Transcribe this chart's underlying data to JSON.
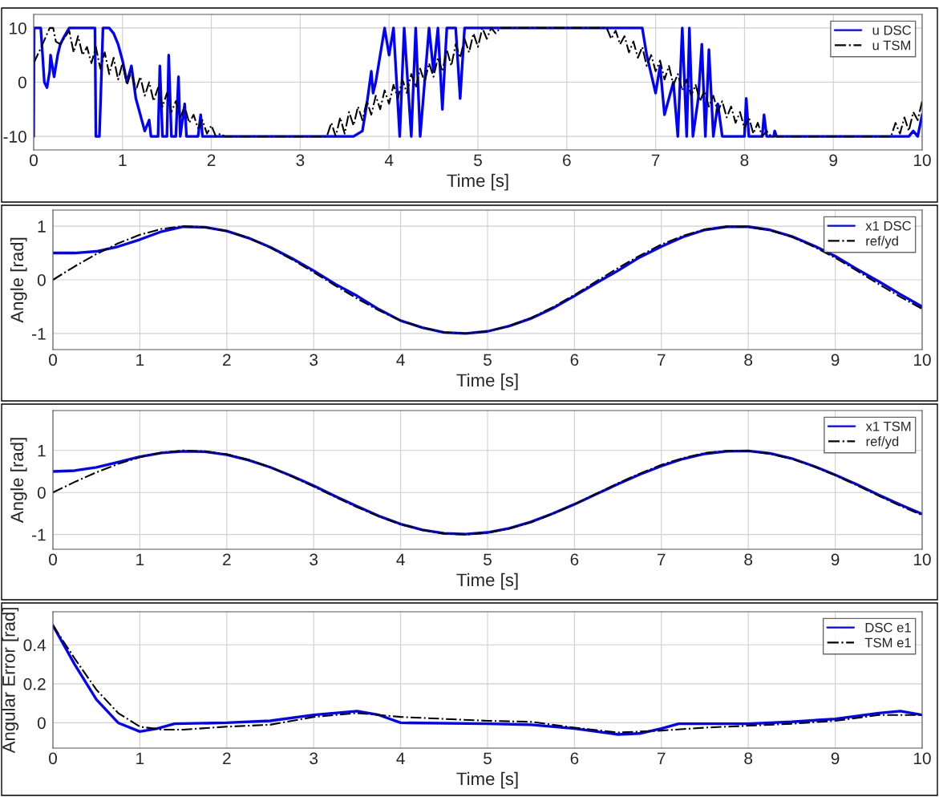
{
  "chart_data": [
    {
      "type": "line",
      "xlabel": "Time [s]",
      "xlim": [
        0,
        10
      ],
      "xticks": [
        0,
        1,
        2,
        3,
        4,
        5,
        6,
        7,
        8,
        9,
        10
      ],
      "ylim": [
        -12.5,
        12.5
      ],
      "yticks": [
        -10,
        0,
        10
      ],
      "grid": true,
      "legend": "top right",
      "series": [
        {
          "name": "u DSC",
          "color": "#0000ff",
          "line_style": "solid",
          "x": [
            0,
            0.005,
            0.08,
            0.12,
            0.15,
            0.18,
            0.19,
            0.22,
            0.23,
            0.27,
            0.3,
            0.33,
            0.4,
            0.69,
            0.7,
            0.74,
            0.78,
            0.85,
            0.9,
            0.95,
            1.0,
            1.05,
            1.1,
            1.15,
            1.2,
            1.25,
            1.3,
            1.32,
            1.4,
            1.42,
            1.45,
            1.5,
            1.52,
            1.55,
            1.6,
            1.63,
            1.65,
            1.7,
            1.72,
            1.85,
            1.88,
            1.9,
            3.6,
            3.7,
            3.75,
            3.8,
            3.82,
            3.85,
            3.95,
            4.0,
            4.05,
            4.12,
            4.17,
            4.25,
            4.3,
            4.35,
            4.45,
            4.5,
            4.55,
            4.6,
            4.65,
            4.75,
            4.8,
            4.85,
            6.85,
            6.9,
            7.0,
            7.05,
            7.1,
            7.2,
            7.25,
            7.3,
            7.35,
            7.38,
            7.42,
            7.48,
            7.52,
            7.56,
            7.6,
            7.65,
            7.7,
            7.75,
            8.0,
            8.02,
            8.05,
            8.2,
            8.22,
            8.25,
            8.33,
            8.34,
            8.36,
            9.85,
            9.9,
            9.95,
            10
          ],
          "values": [
            -10,
            10,
            10,
            0,
            -1,
            2,
            5,
            2,
            1,
            5,
            7,
            8,
            10,
            10,
            -10,
            -10,
            10,
            10,
            9,
            7,
            4,
            0,
            3,
            -3,
            -6,
            -9,
            -7,
            -10,
            -10,
            3,
            -10,
            -10,
            5,
            -10,
            -10,
            1,
            -10,
            -4,
            -10,
            -10,
            -6,
            -10,
            -10,
            -9,
            -4,
            2,
            -2,
            0,
            10,
            5,
            10,
            -10,
            10,
            -10,
            10,
            -10,
            10,
            2,
            10,
            -5,
            10,
            10,
            -3,
            10,
            10,
            5,
            -2,
            3,
            -6,
            0,
            -10,
            10,
            -10,
            10,
            -10,
            -3,
            7,
            -10,
            6,
            -10,
            -4,
            -10,
            -10,
            -3,
            -10,
            -10,
            -6,
            -10,
            -10,
            -9,
            -10,
            -10,
            -9,
            -10,
            -6
          ]
        },
        {
          "name": "u TSM",
          "color": "#000000",
          "line_style": "dashed",
          "x": [
            0,
            0.1,
            0.18,
            0.22,
            0.25,
            0.3,
            0.4,
            0.45,
            0.5,
            0.55,
            0.6,
            0.65,
            0.7,
            0.75,
            0.8,
            0.85,
            0.9,
            0.95,
            1.0,
            1.05,
            1.1,
            1.15,
            1.2,
            1.25,
            1.3,
            1.35,
            1.4,
            1.45,
            1.5,
            1.55,
            1.6,
            1.65,
            1.7,
            1.75,
            1.8,
            1.85,
            1.9,
            1.95,
            2.0,
            2.05,
            2.1,
            2.15,
            3.3,
            3.35,
            3.4,
            3.45,
            3.5,
            3.55,
            3.6,
            3.65,
            3.7,
            3.75,
            3.8,
            3.85,
            3.9,
            3.95,
            4.0,
            4.05,
            4.1,
            4.15,
            4.2,
            4.25,
            4.3,
            4.35,
            4.4,
            4.45,
            4.5,
            4.55,
            4.6,
            4.65,
            4.7,
            4.75,
            4.8,
            4.85,
            4.9,
            4.95,
            5.0,
            5.05,
            5.1,
            5.15,
            5.2,
            5.25,
            6.45,
            6.5,
            6.55,
            6.6,
            6.65,
            6.7,
            6.75,
            6.8,
            6.85,
            6.9,
            6.95,
            7.0,
            7.05,
            7.1,
            7.15,
            7.2,
            7.25,
            7.3,
            7.35,
            7.4,
            7.45,
            7.5,
            7.55,
            7.6,
            7.65,
            7.7,
            7.75,
            7.8,
            7.85,
            7.9,
            7.95,
            8.0,
            8.05,
            8.1,
            8.15,
            8.2,
            8.25,
            8.3,
            9.65,
            9.7,
            9.75,
            9.8,
            9.85,
            9.9,
            9.95,
            10
          ],
          "values": [
            3.5,
            7,
            10,
            10,
            7.5,
            7.0,
            9.5,
            5.5,
            8.5,
            5.0,
            6.5,
            3.5,
            6.5,
            2.5,
            5.5,
            1.5,
            4.5,
            0.5,
            3.5,
            -0.5,
            2.0,
            -1.5,
            1.0,
            -2.5,
            0.0,
            -3.5,
            -1.0,
            -4.5,
            -2.0,
            -5.5,
            -3.5,
            -6.5,
            -4.5,
            -7.5,
            -6.0,
            -8.5,
            -7.0,
            -9.5,
            -8.0,
            -10,
            -9.5,
            -10,
            -10,
            -7.5,
            -10,
            -6.5,
            -9.5,
            -5.5,
            -8,
            -4.5,
            -7,
            -3.5,
            -6,
            -2.5,
            -5,
            -1.5,
            -4,
            -0.5,
            -3,
            0.5,
            -2,
            1.5,
            -1,
            2.5,
            0,
            3.5,
            1,
            4.5,
            2,
            6,
            3,
            7,
            4.5,
            8,
            5.5,
            9,
            6.5,
            10,
            8,
            10,
            9,
            10,
            10,
            8,
            9.5,
            7,
            8.5,
            5.5,
            7.5,
            4.5,
            6.5,
            3,
            5,
            2,
            4,
            0.5,
            3,
            -0.5,
            1.5,
            -1.5,
            0.5,
            -2.5,
            -0.5,
            -3.5,
            -1.5,
            -4.5,
            -2.5,
            -5.5,
            -3.5,
            -6.5,
            -4.5,
            -7.5,
            -5.5,
            -8.5,
            -6.5,
            -9.5,
            -7.5,
            -10,
            -9,
            -10,
            -10,
            -7.5,
            -9.5,
            -6.5,
            -9,
            -5.5,
            -7,
            -3.5
          ]
        }
      ]
    },
    {
      "type": "line",
      "xlabel": "Time [s]",
      "ylabel": "Angle [rad]",
      "xlim": [
        0,
        10
      ],
      "xticks": [
        0,
        1,
        2,
        3,
        4,
        5,
        6,
        7,
        8,
        9,
        10
      ],
      "ylim": [
        -1.3,
        1.3
      ],
      "yticks": [
        -1,
        0,
        1
      ],
      "grid": true,
      "legend": "top right",
      "series": [
        {
          "name": "x1 DSC",
          "color": "#0000ff",
          "line_style": "solid",
          "x": [
            0,
            0.25,
            0.5,
            0.75,
            1,
            1.25,
            1.5,
            1.75,
            2,
            2.25,
            2.5,
            2.75,
            3,
            3.25,
            3.5,
            3.75,
            4,
            4.25,
            4.5,
            4.75,
            5,
            5.25,
            5.5,
            5.75,
            6,
            6.25,
            6.5,
            6.75,
            7,
            7.25,
            7.5,
            7.75,
            8,
            8.25,
            8.5,
            8.75,
            9,
            9.25,
            9.5,
            9.75,
            10
          ],
          "values": [
            0.5,
            0.5,
            0.53,
            0.62,
            0.75,
            0.9,
            0.99,
            0.98,
            0.91,
            0.78,
            0.61,
            0.4,
            0.17,
            -0.08,
            -0.3,
            -0.55,
            -0.76,
            -0.89,
            -0.98,
            -1.0,
            -0.96,
            -0.86,
            -0.72,
            -0.53,
            -0.3,
            -0.06,
            0.17,
            0.42,
            0.62,
            0.8,
            0.93,
            0.99,
            0.99,
            0.93,
            0.81,
            0.64,
            0.44,
            0.2,
            -0.03,
            -0.27,
            -0.5
          ]
        },
        {
          "name": "ref/yd",
          "color": "#000000",
          "line_style": "dashed",
          "x": [
            0,
            0.25,
            0.5,
            0.75,
            1,
            1.25,
            1.5,
            1.75,
            2,
            2.25,
            2.5,
            2.75,
            3,
            3.25,
            3.5,
            3.75,
            4,
            4.25,
            4.5,
            4.75,
            5,
            5.25,
            5.5,
            5.75,
            6,
            6.25,
            6.5,
            6.75,
            7,
            7.25,
            7.5,
            7.75,
            8,
            8.25,
            8.5,
            8.75,
            9,
            9.25,
            9.5,
            9.75,
            10
          ],
          "values": [
            0,
            0.25,
            0.48,
            0.68,
            0.84,
            0.95,
            1.0,
            0.98,
            0.91,
            0.78,
            0.6,
            0.38,
            0.14,
            -0.11,
            -0.35,
            -0.57,
            -0.76,
            -0.89,
            -0.98,
            -1.0,
            -0.96,
            -0.86,
            -0.71,
            -0.51,
            -0.28,
            -0.03,
            0.22,
            0.45,
            0.66,
            0.82,
            0.94,
            0.99,
            0.99,
            0.92,
            0.8,
            0.62,
            0.41,
            0.17,
            -0.08,
            -0.32,
            -0.54
          ]
        }
      ]
    },
    {
      "type": "line",
      "xlabel": "Time [s]",
      "ylabel": "Angle [rad]",
      "xlim": [
        0,
        10
      ],
      "xticks": [
        0,
        1,
        2,
        3,
        4,
        5,
        6,
        7,
        8,
        9,
        10
      ],
      "ylim": [
        -1.35,
        1.95
      ],
      "yticks": [
        -1,
        0,
        1
      ],
      "grid": true,
      "legend": "top right",
      "series": [
        {
          "name": "x1 TSM",
          "color": "#0000ff",
          "line_style": "solid",
          "x": [
            0,
            0.25,
            0.5,
            0.75,
            1,
            1.25,
            1.5,
            1.75,
            2,
            2.25,
            2.5,
            2.75,
            3,
            3.25,
            3.5,
            3.75,
            4,
            4.25,
            4.5,
            4.75,
            5,
            5.25,
            5.5,
            5.75,
            6,
            6.25,
            6.5,
            6.75,
            7,
            7.25,
            7.5,
            7.75,
            8,
            8.25,
            8.5,
            8.75,
            9,
            9.25,
            9.5,
            9.75,
            10
          ],
          "values": [
            0.5,
            0.52,
            0.6,
            0.72,
            0.85,
            0.94,
            0.98,
            0.97,
            0.9,
            0.77,
            0.6,
            0.39,
            0.16,
            -0.09,
            -0.33,
            -0.56,
            -0.75,
            -0.89,
            -0.97,
            -0.99,
            -0.95,
            -0.85,
            -0.7,
            -0.5,
            -0.28,
            -0.04,
            0.2,
            0.43,
            0.63,
            0.8,
            0.92,
            0.98,
            0.99,
            0.93,
            0.81,
            0.63,
            0.42,
            0.19,
            -0.06,
            -0.29,
            -0.51
          ]
        },
        {
          "name": "ref/yd",
          "color": "#000000",
          "line_style": "dashed",
          "x": [
            0,
            0.25,
            0.5,
            0.75,
            1,
            1.25,
            1.5,
            1.75,
            2,
            2.25,
            2.5,
            2.75,
            3,
            3.25,
            3.5,
            3.75,
            4,
            4.25,
            4.5,
            4.75,
            5,
            5.25,
            5.5,
            5.75,
            6,
            6.25,
            6.5,
            6.75,
            7,
            7.25,
            7.5,
            7.75,
            8,
            8.25,
            8.5,
            8.75,
            9,
            9.25,
            9.5,
            9.75,
            10
          ],
          "values": [
            0,
            0.25,
            0.48,
            0.68,
            0.84,
            0.95,
            1.0,
            0.98,
            0.91,
            0.78,
            0.6,
            0.38,
            0.14,
            -0.11,
            -0.35,
            -0.57,
            -0.76,
            -0.89,
            -0.98,
            -1.0,
            -0.96,
            -0.86,
            -0.71,
            -0.51,
            -0.28,
            -0.03,
            0.22,
            0.45,
            0.66,
            0.82,
            0.94,
            0.99,
            0.99,
            0.92,
            0.8,
            0.62,
            0.41,
            0.17,
            -0.08,
            -0.32,
            -0.54
          ]
        }
      ]
    },
    {
      "type": "line",
      "xlabel": "Time [s]",
      "ylabel": "Angular Error [rad]",
      "xlim": [
        0,
        10
      ],
      "xticks": [
        0,
        1,
        2,
        3,
        4,
        5,
        6,
        7,
        8,
        9,
        10
      ],
      "ylim": [
        -0.13,
        0.57
      ],
      "yticks": [
        0,
        0.2,
        0.4
      ],
      "grid": true,
      "legend": "top right",
      "series": [
        {
          "name": "DSC e1",
          "color": "#0000ff",
          "line_style": "solid",
          "x": [
            0,
            0.25,
            0.5,
            0.75,
            1,
            1.2,
            1.4,
            2,
            2.5,
            3,
            3.5,
            3.75,
            4,
            5,
            5.5,
            6,
            6.5,
            6.75,
            7,
            7.2,
            8,
            8.5,
            9,
            9.5,
            9.75,
            10
          ],
          "values": [
            0.5,
            0.3,
            0.12,
            0.0,
            -0.045,
            -0.03,
            -0.005,
            0.0,
            0.01,
            0.04,
            0.06,
            0.04,
            0.0,
            -0.005,
            -0.01,
            -0.03,
            -0.06,
            -0.055,
            -0.03,
            -0.005,
            -0.005,
            0.005,
            0.02,
            0.05,
            0.06,
            0.04
          ]
        },
        {
          "name": "TSM e1",
          "color": "#000000",
          "line_style": "dashed",
          "x": [
            0,
            0.25,
            0.5,
            0.75,
            1,
            1.25,
            1.5,
            2,
            2.5,
            3,
            3.5,
            4,
            4.5,
            5,
            5.5,
            6,
            6.5,
            7,
            7.5,
            8,
            8.5,
            9,
            9.5,
            10
          ],
          "values": [
            0.5,
            0.33,
            0.17,
            0.05,
            -0.02,
            -0.035,
            -0.035,
            -0.02,
            -0.01,
            0.03,
            0.05,
            0.03,
            0.02,
            0.01,
            0.005,
            -0.025,
            -0.05,
            -0.04,
            -0.025,
            -0.015,
            -0.005,
            0.01,
            0.04,
            0.04
          ]
        }
      ]
    }
  ]
}
